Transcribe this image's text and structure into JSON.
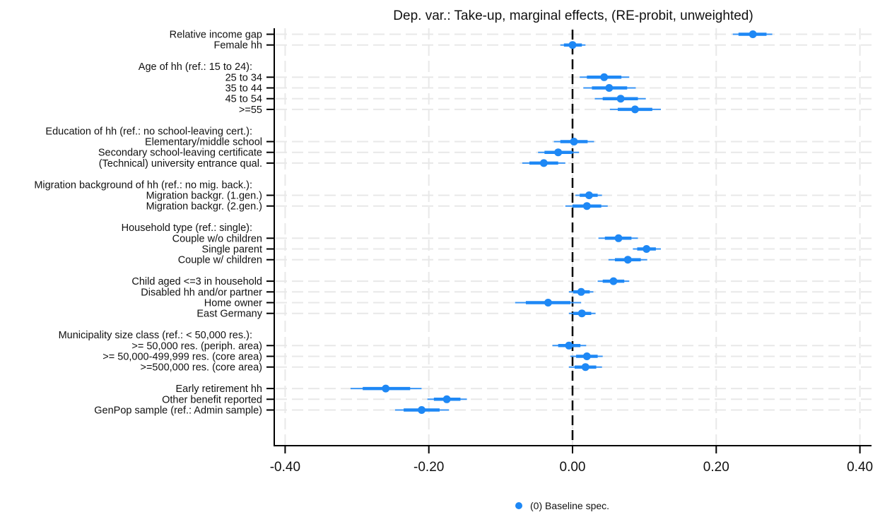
{
  "chart_data": {
    "type": "scatter",
    "subtype": "coefficient-plot",
    "title": "Dep. var.: Take-up, marginal effects, (RE-probit, unweighted)",
    "xlabel": "",
    "ylabel": "",
    "xlim": [
      -0.42,
      0.42
    ],
    "xticks": [
      -0.4,
      -0.2,
      0.0,
      0.2,
      0.4
    ],
    "xtick_labels": [
      "-0.40",
      "-0.20",
      "0.00",
      "0.20",
      "0.40"
    ],
    "reference_line": 0.0,
    "grid": true,
    "legend": {
      "position": "bottom-center",
      "entries": [
        {
          "label": "(0) Baseline spec.",
          "color": "#1e88f5"
        }
      ]
    },
    "colors": {
      "marker": "#1e88f5",
      "ci_thin": "#3a95f5",
      "axis": "#000000",
      "grid": "#e8e8e8"
    },
    "rows": [
      {
        "label": "Relative income gap",
        "type": "coef",
        "value": 0.251,
        "ci95": [
          0.223,
          0.278
        ],
        "ci90": [
          0.231,
          0.27
        ]
      },
      {
        "label": "Female hh",
        "type": "coef",
        "value": 0.0,
        "ci95": [
          -0.017,
          0.018
        ],
        "ci90": [
          -0.012,
          0.013
        ]
      },
      {
        "label": "",
        "type": "gap"
      },
      {
        "label": "Age of hh (ref.: 15 to 24):",
        "type": "header"
      },
      {
        "label": "25 to 34",
        "type": "coef",
        "value": 0.044,
        "ci95": [
          0.01,
          0.079
        ],
        "ci90": [
          0.02,
          0.068
        ]
      },
      {
        "label": "35 to 44",
        "type": "coef",
        "value": 0.051,
        "ci95": [
          0.015,
          0.088
        ],
        "ci90": [
          0.027,
          0.076
        ]
      },
      {
        "label": "45 to 54",
        "type": "coef",
        "value": 0.067,
        "ci95": [
          0.031,
          0.102
        ],
        "ci90": [
          0.042,
          0.091
        ]
      },
      {
        "label": ">=55",
        "type": "coef",
        "value": 0.087,
        "ci95": [
          0.052,
          0.123
        ],
        "ci90": [
          0.063,
          0.111
        ]
      },
      {
        "label": "",
        "type": "gap"
      },
      {
        "label": "Education of hh (ref.: no school-leaving cert.):",
        "type": "header"
      },
      {
        "label": "Elementary/middle school",
        "type": "coef",
        "value": 0.002,
        "ci95": [
          -0.026,
          0.03
        ],
        "ci90": [
          -0.017,
          0.021
        ]
      },
      {
        "label": "Secondary school-leaving certificate",
        "type": "coef",
        "value": -0.02,
        "ci95": [
          -0.048,
          0.009
        ],
        "ci90": [
          -0.039,
          0.0
        ]
      },
      {
        "label": "(Technical) university entrance qual.",
        "type": "coef",
        "value": -0.04,
        "ci95": [
          -0.07,
          -0.01
        ],
        "ci90": [
          -0.06,
          -0.02
        ]
      },
      {
        "label": "",
        "type": "gap"
      },
      {
        "label": "Migration background of hh (ref.: no mig. back.):",
        "type": "header"
      },
      {
        "label": "Migration backgr. (1.gen.)",
        "type": "coef",
        "value": 0.023,
        "ci95": [
          0.004,
          0.041
        ],
        "ci90": [
          0.01,
          0.035
        ]
      },
      {
        "label": "Migration backgr. (2.gen.)",
        "type": "coef",
        "value": 0.02,
        "ci95": [
          -0.01,
          0.049
        ],
        "ci90": [
          0.0,
          0.04
        ]
      },
      {
        "label": "",
        "type": "gap"
      },
      {
        "label": "Household type (ref.: single):",
        "type": "header"
      },
      {
        "label": "Couple w/o children",
        "type": "coef",
        "value": 0.064,
        "ci95": [
          0.036,
          0.091
        ],
        "ci90": [
          0.045,
          0.082
        ]
      },
      {
        "label": "Single parent",
        "type": "coef",
        "value": 0.103,
        "ci95": [
          0.084,
          0.123
        ],
        "ci90": [
          0.09,
          0.116
        ]
      },
      {
        "label": "Couple w/ children",
        "type": "coef",
        "value": 0.077,
        "ci95": [
          0.05,
          0.104
        ],
        "ci90": [
          0.059,
          0.095
        ]
      },
      {
        "label": "",
        "type": "gap"
      },
      {
        "label": "Child aged <=3 in household",
        "type": "coef",
        "value": 0.057,
        "ci95": [
          0.035,
          0.079
        ],
        "ci90": [
          0.042,
          0.072
        ]
      },
      {
        "label": "Disabled hh and/or partner",
        "type": "coef",
        "value": 0.012,
        "ci95": [
          -0.005,
          0.029
        ],
        "ci90": [
          0.001,
          0.024
        ]
      },
      {
        "label": "Home owner",
        "type": "coef",
        "value": -0.034,
        "ci95": [
          -0.08,
          0.012
        ],
        "ci90": [
          -0.065,
          -0.003
        ]
      },
      {
        "label": "East Germany",
        "type": "coef",
        "value": 0.013,
        "ci95": [
          -0.005,
          0.032
        ],
        "ci90": [
          0.001,
          0.026
        ]
      },
      {
        "label": "",
        "type": "gap"
      },
      {
        "label": "Municipality size class (ref.: < 50,000 res.):",
        "type": "header"
      },
      {
        "label": ">= 50,000 res. (periph. area)",
        "type": "coef",
        "value": -0.005,
        "ci95": [
          -0.028,
          0.019
        ],
        "ci90": [
          -0.02,
          0.011
        ]
      },
      {
        "label": ">= 50,000-499,999 res. (core area)",
        "type": "coef",
        "value": 0.02,
        "ci95": [
          -0.003,
          0.042
        ],
        "ci90": [
          0.005,
          0.035
        ]
      },
      {
        "label": ">=500,000 res. (core area)",
        "type": "coef",
        "value": 0.018,
        "ci95": [
          -0.005,
          0.041
        ],
        "ci90": [
          0.003,
          0.033
        ]
      },
      {
        "label": "",
        "type": "gap"
      },
      {
        "label": "Early retirement hh",
        "type": "coef",
        "value": -0.26,
        "ci95": [
          -0.309,
          -0.21
        ],
        "ci90": [
          -0.292,
          -0.226
        ]
      },
      {
        "label": "Other benefit reported",
        "type": "coef",
        "value": -0.175,
        "ci95": [
          -0.202,
          -0.147
        ],
        "ci90": [
          -0.193,
          -0.156
        ]
      },
      {
        "label": "GenPop sample (ref.: Admin sample)",
        "type": "coef",
        "value": -0.21,
        "ci95": [
          -0.247,
          -0.172
        ],
        "ci90": [
          -0.235,
          -0.185
        ]
      }
    ]
  }
}
